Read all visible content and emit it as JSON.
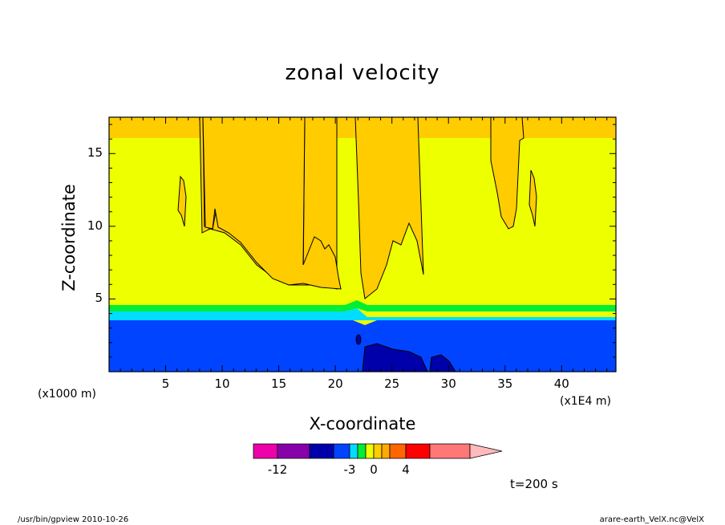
{
  "chart_data": {
    "type": "heatmap",
    "title": "zonal velocity",
    "xlabel": "X-coordinate",
    "ylabel": "Z-coordinate",
    "x_unit": "(x1000 m)",
    "x_scale_note": "(x1E4 m)",
    "xlim": [
      0,
      44.8
    ],
    "ylim": [
      0,
      17.5
    ],
    "x_ticks": [
      "5",
      "10",
      "15",
      "20",
      "25",
      "30",
      "35",
      "40"
    ],
    "x_tick_values": [
      5,
      10,
      15,
      20,
      25,
      30,
      35,
      40
    ],
    "y_ticks": [
      "5",
      "10",
      "15"
    ],
    "y_tick_values": [
      5,
      10,
      15
    ],
    "time_label": "t=200 s",
    "colorbar": {
      "tick_labels": [
        "-12",
        "-3",
        "0",
        "4"
      ],
      "colors": [
        "#ee00aa",
        "#8800aa",
        "#0000aa",
        "#0044ff",
        "#00ddff",
        "#00ee33",
        "#eeff00",
        "#ffcc00",
        "#ffaa00",
        "#ff6600",
        "#ff0000",
        "#ff7777",
        "#ffbbbb"
      ]
    },
    "fields": {
      "lower_band_color": "#0044ff",
      "cyan_band_color": "#00ddff",
      "green_band_color": "#00ee33",
      "main_color": "#eeff00",
      "positive_color": "#ffcc00",
      "core_color": "#0000aa"
    }
  },
  "footer": {
    "left": "/usr/bin/gpview   2010-10-26",
    "right": "arare-earth_VelX.nc@VelX"
  }
}
